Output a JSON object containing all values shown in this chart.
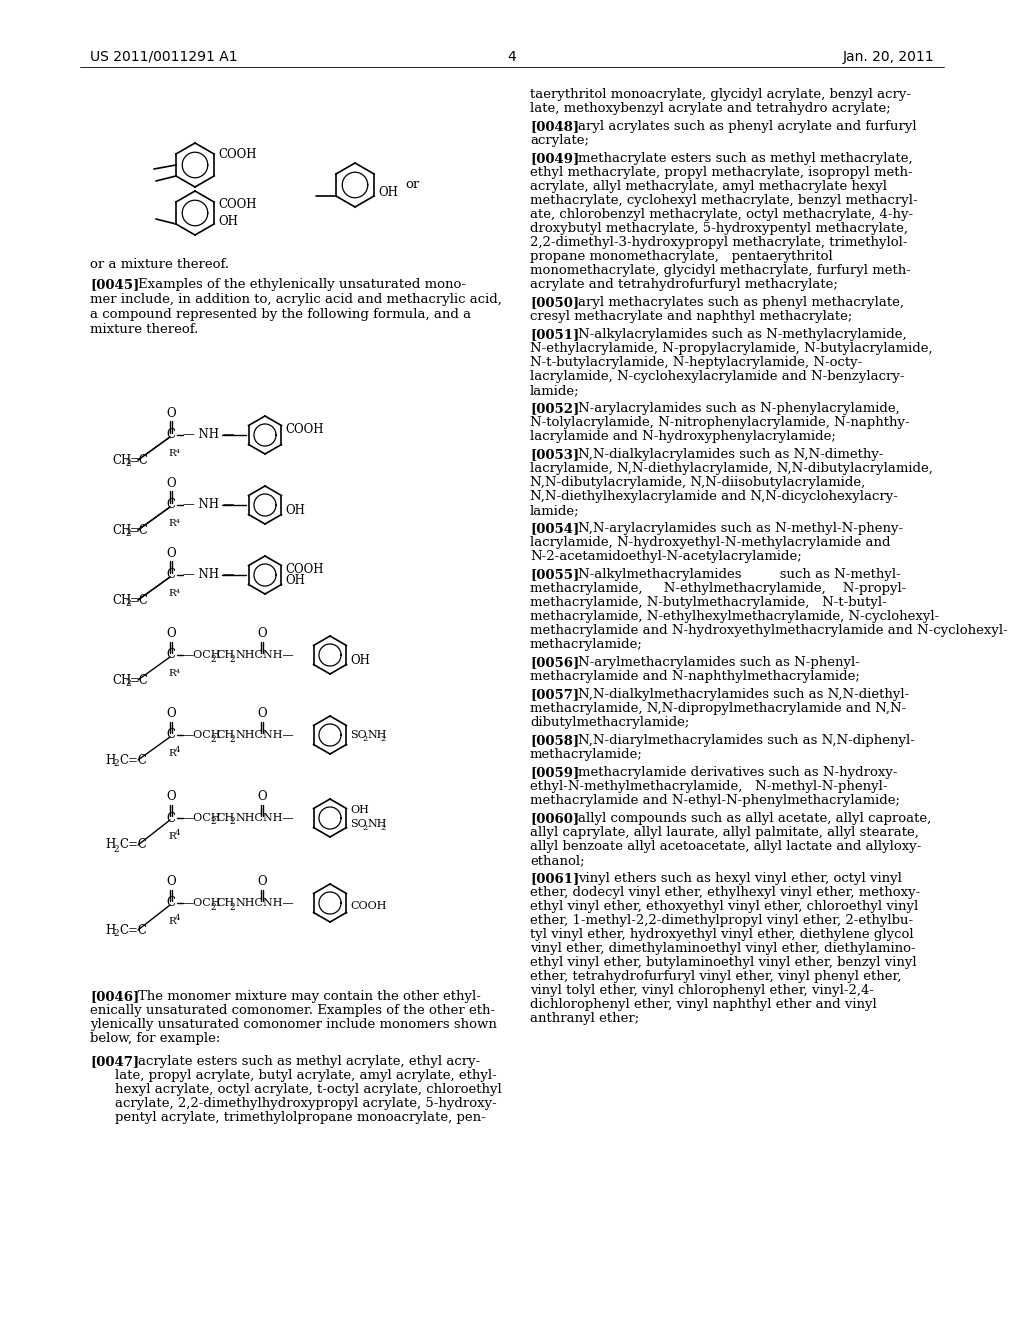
{
  "page_width": 10.24,
  "page_height": 13.2,
  "bg_color": "#ffffff",
  "header_left": "US 2011/0011291 A1",
  "header_right": "Jan. 20, 2011",
  "page_number": "4",
  "text_color": "#000000"
}
